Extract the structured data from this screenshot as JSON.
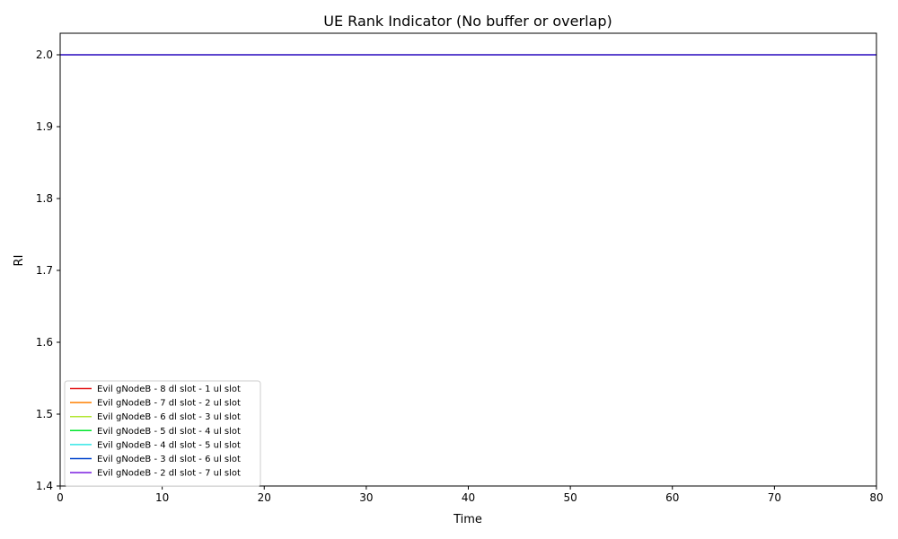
{
  "chart_data": {
    "type": "line",
    "title": "UE Rank Indicator (No buffer or overlap)",
    "xlabel": "Time",
    "ylabel": "RI",
    "xlim": [
      0,
      80
    ],
    "ylim": [
      1.4,
      2.03
    ],
    "xticks": [
      0,
      10,
      20,
      30,
      40,
      50,
      60,
      70,
      80
    ],
    "yticks": [
      1.4,
      1.5,
      1.6,
      1.7,
      1.8,
      1.9,
      2.0
    ],
    "grid": false,
    "legend_position": "lower-left",
    "series": [
      {
        "name": "Evil gNodeB - 8 dl slot - 1 ul slot",
        "color": "#e31a1c",
        "x": [
          0,
          80
        ],
        "y": [
          2.0,
          2.0
        ]
      },
      {
        "name": "Evil gNodeB - 7 dl slot - 2 ul slot",
        "color": "#ff8000",
        "x": [
          0,
          80
        ],
        "y": [
          2.0,
          2.0
        ]
      },
      {
        "name": "Evil gNodeB - 6 dl slot - 3 ul slot",
        "color": "#b2e630",
        "x": [
          0,
          80
        ],
        "y": [
          2.0,
          2.0
        ]
      },
      {
        "name": "Evil gNodeB - 5 dl slot - 4 ul slot",
        "color": "#00e62e",
        "x": [
          0,
          80
        ],
        "y": [
          2.0,
          2.0
        ]
      },
      {
        "name": "Evil gNodeB - 4 dl slot - 5 ul slot",
        "color": "#33e6e6",
        "x": [
          0,
          80
        ],
        "y": [
          2.0,
          2.0
        ]
      },
      {
        "name": "Evil gNodeB - 3 dl slot - 6 ul slot",
        "color": "#0044cc",
        "x": [
          0,
          80
        ],
        "y": [
          2.0,
          2.0
        ]
      },
      {
        "name": "Evil gNodeB - 2 dl slot - 7 ul slot",
        "color": "#7a1ee0",
        "x": [
          0,
          80
        ],
        "y": [
          2.0,
          2.0
        ]
      }
    ]
  }
}
